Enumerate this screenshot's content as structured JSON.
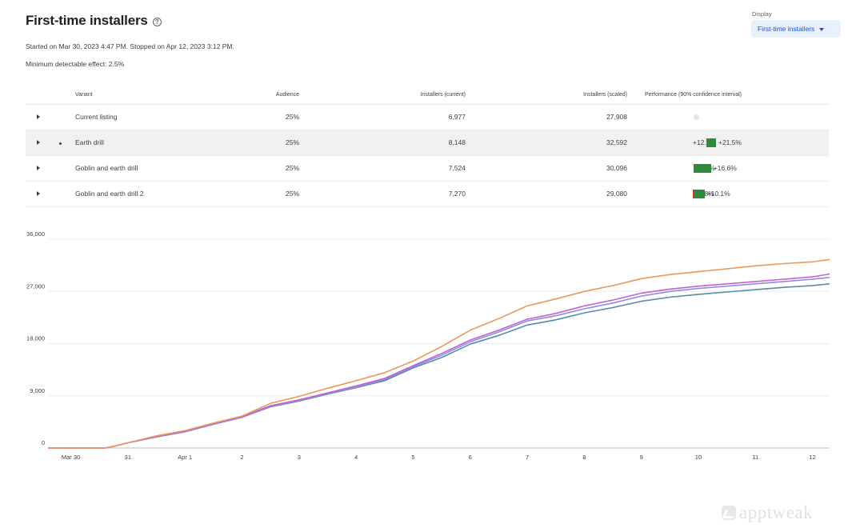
{
  "header": {
    "title": "First-time installers",
    "help_icon": "help-circle-icon",
    "started_text": "Started on Mar 30, 2023 4:47 PM. Stopped on Apr 12, 2023 3:12 PM.",
    "mde_text": "Minimum detectable effect: 2.5%"
  },
  "display": {
    "label": "Display",
    "selected": "First-time installers",
    "icon": "caret-down-icon",
    "accent_color": "#1a57c9",
    "background_color": "#e8f0fe"
  },
  "table": {
    "columns": [
      "Variant",
      "Audience",
      "Installers (current)",
      "Installers (scaled)",
      "Performance (90% confidence interval)"
    ],
    "rows": [
      {
        "variant": "Current listing",
        "audience": "25%",
        "current": "6,977",
        "scaled": "27,908",
        "perf_low": "",
        "perf_high": "",
        "ci_low": null,
        "ci_high": null,
        "highlighted": false
      },
      {
        "variant": "Earth drill",
        "audience": "25%",
        "current": "8,148",
        "scaled": "32,592",
        "perf_low": "+12.1%",
        "perf_high": "+21.5%",
        "ci_low": 12.1,
        "ci_high": 21.5,
        "highlighted": true
      },
      {
        "variant": "Goblin and earth drill",
        "audience": "25%",
        "current": "7,524",
        "scaled": "30,096",
        "perf_low": "-0.9%",
        "perf_high": "+16.6%",
        "ci_low": -0.9,
        "ci_high": 16.6,
        "highlighted": false
      },
      {
        "variant": "Goblin and earth drill 2",
        "audience": "25%",
        "current": "7,270",
        "scaled": "29,080",
        "perf_low": "-1.8%",
        "perf_high": "+10.1%",
        "ci_low": -1.8,
        "ci_high": 10.1,
        "highlighted": false
      }
    ],
    "bar_color": "#2e8b3c",
    "negative_color": "#d93025"
  },
  "chart_data": {
    "type": "line",
    "y_ticks": [
      "0",
      "9,000",
      "18,000",
      "27,000",
      "36,000"
    ],
    "ylim": [
      0,
      36000
    ],
    "x_ticks": [
      "Mar 30",
      "31",
      "Apr 1",
      "2",
      "3",
      "4",
      "5",
      "6",
      "7",
      "8",
      "9",
      "10",
      "11",
      "12"
    ],
    "x_tick_positions": [
      0,
      1,
      2,
      3,
      4,
      5,
      6,
      7,
      8,
      9,
      10,
      11,
      12,
      13
    ],
    "xlim": [
      -0.4,
      13.3
    ],
    "grid": true,
    "legend": "none",
    "series": [
      {
        "color": "#e8995a",
        "x": [
          -0.4,
          0.6,
          0.8,
          1,
          1.5,
          2,
          2.5,
          3,
          3.5,
          4,
          4.5,
          5,
          5.5,
          6,
          6.5,
          7,
          7.5,
          8,
          8.5,
          9,
          9.5,
          10,
          10.5,
          11,
          11.5,
          12,
          12.5,
          13,
          13.3
        ],
        "y": [
          0,
          0,
          400,
          900,
          2100,
          3000,
          4300,
          5500,
          7700,
          8900,
          10300,
          11600,
          13000,
          15000,
          17500,
          20300,
          22300,
          24500,
          25700,
          27000,
          28000,
          29200,
          29900,
          30400,
          30900,
          31400,
          31800,
          32100,
          32500
        ]
      },
      {
        "color": "#c560d4",
        "x": [
          -0.4,
          0.6,
          0.8,
          1,
          1.5,
          2,
          2.5,
          3,
          3.5,
          4,
          4.5,
          5,
          5.5,
          6,
          6.5,
          7,
          7.5,
          8,
          8.5,
          9,
          9.5,
          10,
          10.5,
          11,
          11.5,
          12,
          12.5,
          13,
          13.3
        ],
        "y": [
          0,
          0,
          400,
          900,
          2000,
          2900,
          4200,
          5400,
          7300,
          8300,
          9500,
          10700,
          12000,
          14200,
          16300,
          18600,
          20300,
          22200,
          23200,
          24500,
          25500,
          26700,
          27400,
          27900,
          28300,
          28700,
          29100,
          29500,
          30000
        ]
      },
      {
        "color": "#8f8de0",
        "x": [
          -0.4,
          0.6,
          0.8,
          1,
          1.5,
          2,
          2.5,
          3,
          3.5,
          4,
          4.5,
          5,
          5.5,
          6,
          6.5,
          7,
          7.5,
          8,
          8.5,
          9,
          9.5,
          10,
          10.5,
          11,
          11.5,
          12,
          12.5,
          13,
          13.3
        ],
        "y": [
          0,
          0,
          400,
          900,
          1900,
          2800,
          4100,
          5300,
          7200,
          8200,
          9400,
          10500,
          11800,
          14000,
          16000,
          18300,
          20000,
          21900,
          22800,
          24000,
          25000,
          26200,
          27000,
          27500,
          27900,
          28300,
          28700,
          29100,
          29400
        ]
      },
      {
        "color": "#5a8aa8",
        "x": [
          -0.4,
          0.6,
          0.8,
          1,
          1.5,
          2,
          2.5,
          3,
          3.5,
          4,
          4.5,
          5,
          5.5,
          6,
          6.5,
          7,
          7.5,
          8,
          8.5,
          9,
          9.5,
          10,
          10.5,
          11,
          11.5,
          12,
          12.5,
          13,
          13.3
        ],
        "y": [
          0,
          0,
          400,
          900,
          1900,
          2800,
          4100,
          5300,
          7100,
          8100,
          9300,
          10400,
          11600,
          13800,
          15600,
          17900,
          19400,
          21200,
          22100,
          23300,
          24200,
          25300,
          26000,
          26500,
          26900,
          27300,
          27700,
          28000,
          28300
        ]
      }
    ]
  },
  "watermark": {
    "text": "apptweak",
    "icon": "apptweak-logo-icon"
  }
}
